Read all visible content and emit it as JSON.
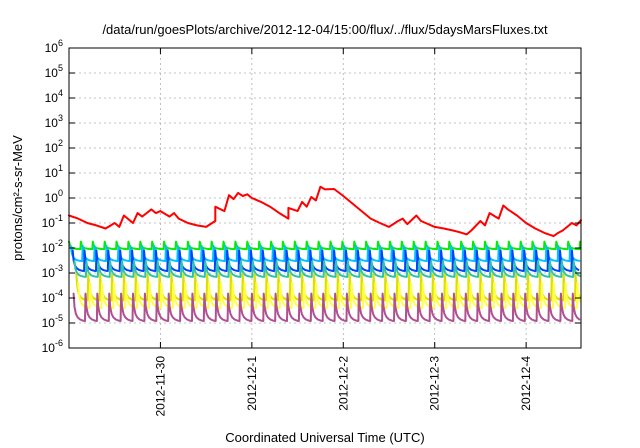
{
  "chart_data": {
    "type": "line",
    "title": "/data/run/goesPlots/archive/2012-12-04/15:00/flux/../flux/5daysMarsFluxes.txt",
    "xlabel": "Coordinated Universal Time (UTC)",
    "ylabel": "protons/cm²-s-sr-MeV",
    "yscale": "log",
    "ylim": [
      1e-06,
      1000000.0
    ],
    "xlim": [
      0,
      5.6
    ],
    "x_unit": "days since 2012-11-29 00:00 UTC",
    "grid": true,
    "legend": "none",
    "x_ticks": [
      {
        "value": 1,
        "label": "2012-11-30"
      },
      {
        "value": 2,
        "label": "2012-12-1"
      },
      {
        "value": 3,
        "label": "2012-12-2"
      },
      {
        "value": 4,
        "label": "2012-12-3"
      },
      {
        "value": 5,
        "label": "2012-12-4"
      }
    ],
    "y_ticks": [
      {
        "value": 1e-06,
        "base": "10",
        "exp": "-6"
      },
      {
        "value": 1e-05,
        "base": "10",
        "exp": "-5"
      },
      {
        "value": 0.0001,
        "base": "10",
        "exp": "-4"
      },
      {
        "value": 0.001,
        "base": "10",
        "exp": "-3"
      },
      {
        "value": 0.01,
        "base": "10",
        "exp": "-2"
      },
      {
        "value": 0.1,
        "base": "10",
        "exp": "-1"
      },
      {
        "value": 1,
        "base": "10",
        "exp": "0"
      },
      {
        "value": 10,
        "base": "10",
        "exp": "1"
      },
      {
        "value": 100,
        "base": "10",
        "exp": "2"
      },
      {
        "value": 1000,
        "base": "10",
        "exp": "3"
      },
      {
        "value": 10000,
        "base": "10",
        "exp": "4"
      },
      {
        "value": 100000,
        "base": "10",
        "exp": "5"
      },
      {
        "value": 1000000,
        "base": "10",
        "exp": "6"
      }
    ],
    "series": [
      {
        "color": "#ff0000",
        "x": [
          0.0,
          0.1,
          0.2,
          0.3,
          0.4,
          0.5,
          0.55,
          0.6,
          0.7,
          0.75,
          0.8,
          0.9,
          0.95,
          1.0,
          1.1,
          1.15,
          1.2,
          1.3,
          1.4,
          1.5,
          1.6,
          1.6,
          1.7,
          1.75,
          1.8,
          1.85,
          1.9,
          1.95,
          2.0,
          2.1,
          2.2,
          2.3,
          2.4,
          2.4,
          2.5,
          2.55,
          2.6,
          2.65,
          2.7,
          2.75,
          2.8,
          2.9,
          3.0,
          3.1,
          3.2,
          3.3,
          3.4,
          3.5,
          3.6,
          3.65,
          3.7,
          3.8,
          3.85,
          3.9,
          4.0,
          4.1,
          4.2,
          4.25,
          4.3,
          4.35,
          4.4,
          4.5,
          4.55,
          4.6,
          4.7,
          4.75,
          4.8,
          4.9,
          5.0,
          5.1,
          5.2,
          5.3,
          5.35,
          5.4,
          5.5,
          5.55,
          5.6
        ],
        "y": [
          0.2,
          0.15,
          0.1,
          0.08,
          0.06,
          0.1,
          0.07,
          0.2,
          0.1,
          0.25,
          0.18,
          0.35,
          0.25,
          0.3,
          0.18,
          0.25,
          0.15,
          0.1,
          0.08,
          0.07,
          0.12,
          0.45,
          0.3,
          1.3,
          0.9,
          1.6,
          1.2,
          1.4,
          1.0,
          0.7,
          0.45,
          0.25,
          0.15,
          0.4,
          0.3,
          0.7,
          0.45,
          1.1,
          0.8,
          2.8,
          2.2,
          2.3,
          1.2,
          0.6,
          0.3,
          0.15,
          0.1,
          0.07,
          0.12,
          0.15,
          0.09,
          0.2,
          0.12,
          0.1,
          0.07,
          0.06,
          0.05,
          0.045,
          0.04,
          0.035,
          0.05,
          0.12,
          0.08,
          0.25,
          0.15,
          0.5,
          0.35,
          0.2,
          0.1,
          0.06,
          0.04,
          0.03,
          0.04,
          0.05,
          0.1,
          0.08,
          0.13
        ]
      },
      {
        "color": "#00ee00",
        "x0": 0.0,
        "period": 0.13,
        "peak": 0.018,
        "trough": 0.009
      },
      {
        "color": "#00c0ff",
        "x0": 0.02,
        "period": 0.13,
        "peak": 0.012,
        "trough": 0.003
      },
      {
        "color": "#0044ff",
        "x0": 0.04,
        "period": 0.13,
        "peak": 0.008,
        "trough": 0.0012
      },
      {
        "color": "#2ec4a8",
        "x0": 0.06,
        "period": 0.13,
        "peak": 0.003,
        "trough": 0.0007
      },
      {
        "color": "#dddd00",
        "x0": 0.08,
        "period": 0.13,
        "peak": 0.0009,
        "trough": 8e-05
      },
      {
        "color": "#ffff44",
        "x0": 0.1,
        "period": 0.13,
        "peak": 0.0004,
        "trough": 4e-05
      },
      {
        "color": "#b05090",
        "x0": 0.05,
        "period": 0.13,
        "peak": 0.00015,
        "trough": 1.2e-05
      }
    ]
  }
}
